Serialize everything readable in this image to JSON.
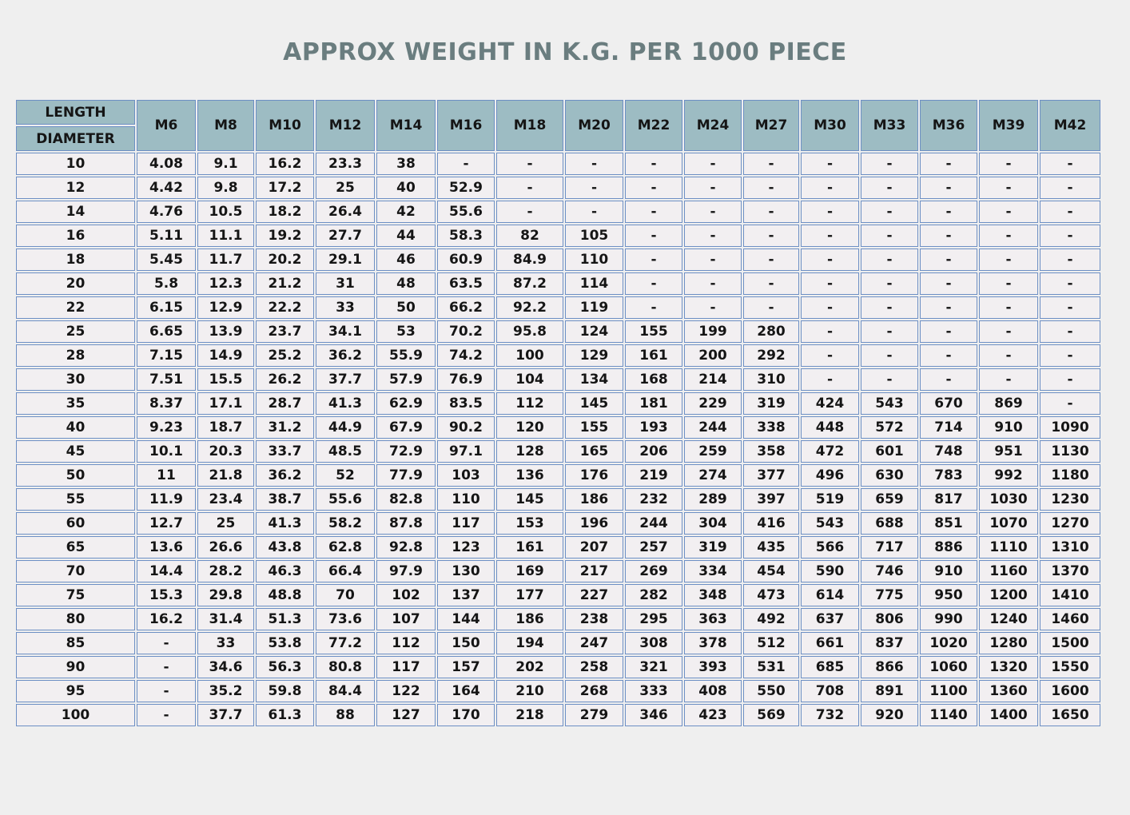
{
  "title": "APPROX WEIGHT IN K.G. PER 1000 PIECE",
  "corner": {
    "top": "LENGTH",
    "bottom": "DIAMETER"
  },
  "columns": [
    "M6",
    "M8",
    "M10",
    "M12",
    "M14",
    "M16",
    "M18",
    "M20",
    "M22",
    "M24",
    "M27",
    "M30",
    "M33",
    "M36",
    "M39",
    "M42"
  ],
  "rows": [
    {
      "label": "10",
      "values": [
        "4.08",
        "9.1",
        "16.2",
        "23.3",
        "38",
        "-",
        "-",
        "-",
        "-",
        "-",
        "-",
        "-",
        "-",
        "-",
        "-",
        "-"
      ]
    },
    {
      "label": "12",
      "values": [
        "4.42",
        "9.8",
        "17.2",
        "25",
        "40",
        "52.9",
        "-",
        "-",
        "-",
        "-",
        "-",
        "-",
        "-",
        "-",
        "-",
        "-"
      ]
    },
    {
      "label": "14",
      "values": [
        "4.76",
        "10.5",
        "18.2",
        "26.4",
        "42",
        "55.6",
        "-",
        "-",
        "-",
        "-",
        "-",
        "-",
        "-",
        "-",
        "-",
        "-"
      ]
    },
    {
      "label": "16",
      "values": [
        "5.11",
        "11.1",
        "19.2",
        "27.7",
        "44",
        "58.3",
        "82",
        "105",
        "-",
        "-",
        "-",
        "-",
        "-",
        "-",
        "-",
        "-"
      ]
    },
    {
      "label": "18",
      "values": [
        "5.45",
        "11.7",
        "20.2",
        "29.1",
        "46",
        "60.9",
        "84.9",
        "110",
        "-",
        "-",
        "-",
        "-",
        "-",
        "-",
        "-",
        "-"
      ]
    },
    {
      "label": "20",
      "values": [
        "5.8",
        "12.3",
        "21.2",
        "31",
        "48",
        "63.5",
        "87.2",
        "114",
        "-",
        "-",
        "-",
        "-",
        "-",
        "-",
        "-",
        "-"
      ]
    },
    {
      "label": "22",
      "values": [
        "6.15",
        "12.9",
        "22.2",
        "33",
        "50",
        "66.2",
        "92.2",
        "119",
        "-",
        "-",
        "-",
        "-",
        "-",
        "-",
        "-",
        "-"
      ]
    },
    {
      "label": "25",
      "values": [
        "6.65",
        "13.9",
        "23.7",
        "34.1",
        "53",
        "70.2",
        "95.8",
        "124",
        "155",
        "199",
        "280",
        "-",
        "-",
        "-",
        "-",
        "-"
      ]
    },
    {
      "label": "28",
      "values": [
        "7.15",
        "14.9",
        "25.2",
        "36.2",
        "55.9",
        "74.2",
        "100",
        "129",
        "161",
        "200",
        "292",
        "-",
        "-",
        "-",
        "-",
        "-"
      ]
    },
    {
      "label": "30",
      "values": [
        "7.51",
        "15.5",
        "26.2",
        "37.7",
        "57.9",
        "76.9",
        "104",
        "134",
        "168",
        "214",
        "310",
        "-",
        "-",
        "-",
        "-",
        "-"
      ]
    },
    {
      "label": "35",
      "values": [
        "8.37",
        "17.1",
        "28.7",
        "41.3",
        "62.9",
        "83.5",
        "112",
        "145",
        "181",
        "229",
        "319",
        "424",
        "543",
        "670",
        "869",
        "-"
      ]
    },
    {
      "label": "40",
      "values": [
        "9.23",
        "18.7",
        "31.2",
        "44.9",
        "67.9",
        "90.2",
        "120",
        "155",
        "193",
        "244",
        "338",
        "448",
        "572",
        "714",
        "910",
        "1090"
      ]
    },
    {
      "label": "45",
      "values": [
        "10.1",
        "20.3",
        "33.7",
        "48.5",
        "72.9",
        "97.1",
        "128",
        "165",
        "206",
        "259",
        "358",
        "472",
        "601",
        "748",
        "951",
        "1130"
      ]
    },
    {
      "label": "50",
      "values": [
        "11",
        "21.8",
        "36.2",
        "52",
        "77.9",
        "103",
        "136",
        "176",
        "219",
        "274",
        "377",
        "496",
        "630",
        "783",
        "992",
        "1180"
      ]
    },
    {
      "label": "55",
      "values": [
        "11.9",
        "23.4",
        "38.7",
        "55.6",
        "82.8",
        "110",
        "145",
        "186",
        "232",
        "289",
        "397",
        "519",
        "659",
        "817",
        "1030",
        "1230"
      ]
    },
    {
      "label": "60",
      "values": [
        "12.7",
        "25",
        "41.3",
        "58.2",
        "87.8",
        "117",
        "153",
        "196",
        "244",
        "304",
        "416",
        "543",
        "688",
        "851",
        "1070",
        "1270"
      ]
    },
    {
      "label": "65",
      "values": [
        "13.6",
        "26.6",
        "43.8",
        "62.8",
        "92.8",
        "123",
        "161",
        "207",
        "257",
        "319",
        "435",
        "566",
        "717",
        "886",
        "1110",
        "1310"
      ]
    },
    {
      "label": "70",
      "values": [
        "14.4",
        "28.2",
        "46.3",
        "66.4",
        "97.9",
        "130",
        "169",
        "217",
        "269",
        "334",
        "454",
        "590",
        "746",
        "910",
        "1160",
        "1370"
      ]
    },
    {
      "label": "75",
      "values": [
        "15.3",
        "29.8",
        "48.8",
        "70",
        "102",
        "137",
        "177",
        "227",
        "282",
        "348",
        "473",
        "614",
        "775",
        "950",
        "1200",
        "1410"
      ]
    },
    {
      "label": "80",
      "values": [
        "16.2",
        "31.4",
        "51.3",
        "73.6",
        "107",
        "144",
        "186",
        "238",
        "295",
        "363",
        "492",
        "637",
        "806",
        "990",
        "1240",
        "1460"
      ]
    },
    {
      "label": "85",
      "values": [
        "-",
        "33",
        "53.8",
        "77.2",
        "112",
        "150",
        "194",
        "247",
        "308",
        "378",
        "512",
        "661",
        "837",
        "1020",
        "1280",
        "1500"
      ]
    },
    {
      "label": "90",
      "values": [
        "-",
        "34.6",
        "56.3",
        "80.8",
        "117",
        "157",
        "202",
        "258",
        "321",
        "393",
        "531",
        "685",
        "866",
        "1060",
        "1320",
        "1550"
      ]
    },
    {
      "label": "95",
      "values": [
        "-",
        "35.2",
        "59.8",
        "84.4",
        "122",
        "164",
        "210",
        "268",
        "333",
        "408",
        "550",
        "708",
        "891",
        "1100",
        "1360",
        "1600"
      ]
    },
    {
      "label": "100",
      "values": [
        "-",
        "37.7",
        "61.3",
        "88",
        "127",
        "170",
        "218",
        "279",
        "346",
        "423",
        "569",
        "732",
        "920",
        "1140",
        "1400",
        "1650"
      ]
    }
  ]
}
